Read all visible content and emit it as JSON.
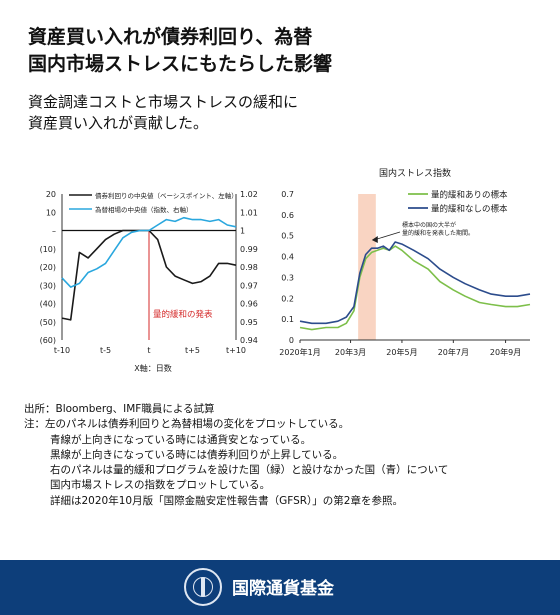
{
  "header": {
    "title_line1": "資産買い入れが債券利回り、為替",
    "title_line2": "国内市場ストレスにもたらした影響",
    "subtitle_line1": "資金調達コストと市場ストレスの緩和に",
    "subtitle_line2": "資産買い入れが貢献した。"
  },
  "colors": {
    "black_series": "#1a1a1a",
    "cyan_series": "#2aa7de",
    "green_series": "#7dbf4a",
    "blue_series": "#2c4c8c",
    "event_line": "#d42a2a",
    "shade": "#f7c9b3",
    "footer_bg": "#0d3e7a"
  },
  "chart_data": [
    {
      "type": "line",
      "x": [
        "t-10",
        "t-9",
        "t-8",
        "t-7",
        "t-6",
        "t-5",
        "t-4",
        "t-3",
        "t-2",
        "t-1",
        "t",
        "t+1",
        "t+2",
        "t+3",
        "t+4",
        "t+5",
        "t+6",
        "t+7",
        "t+8",
        "t+9",
        "t+10"
      ],
      "xticks": [
        "t-10",
        "t-5",
        "t",
        "t+5",
        "t+10"
      ],
      "xlabel": "X軸：日数",
      "left_axis": {
        "ylim": [
          -60,
          20
        ],
        "ticks": [
          "20",
          "10",
          "–",
          "(10)",
          "(20)",
          "(30)",
          "(40)",
          "(50)",
          "(60)"
        ]
      },
      "right_axis": {
        "ylim": [
          0.94,
          1.02
        ],
        "ticks": [
          "1.02",
          "1.01",
          "1",
          "0.99",
          "0.98",
          "0.97",
          "0.96",
          "0.95",
          "0.94"
        ]
      },
      "series": [
        {
          "name": "債券利回りの中央値（ベーシスポイント、左軸）",
          "axis": "left",
          "values": [
            -48,
            -49,
            -12,
            -15,
            -10,
            -5,
            -2,
            0,
            0,
            0,
            0,
            -5,
            -20,
            -25,
            -27,
            -29,
            -28,
            -25,
            -18,
            -18,
            -19
          ]
        },
        {
          "name": "為替相場の中央値（指数、右軸）",
          "axis": "right",
          "values": [
            0.974,
            0.969,
            0.971,
            0.977,
            0.979,
            0.982,
            0.989,
            0.996,
            0.999,
            1.0,
            1.0,
            1.003,
            1.006,
            1.005,
            1.007,
            1.006,
            1.006,
            1.005,
            1.006,
            1.003,
            1.002
          ]
        }
      ],
      "event": {
        "x": "t",
        "label": "量的緩和の発表"
      }
    },
    {
      "type": "line",
      "title": "国内ストレス指数",
      "x_range": [
        "2020-01-01",
        "2020-09-30"
      ],
      "xticks": [
        {
          "x": "2020-01-01",
          "label": "2020年1月"
        },
        {
          "x": "2020-03-01",
          "label": "20年3月"
        },
        {
          "x": "2020-05-01",
          "label": "20年5月"
        },
        {
          "x": "2020-07-01",
          "label": "20年7月"
        },
        {
          "x": "2020-09-01",
          "label": "20年9月"
        }
      ],
      "ylim": [
        0,
        0.7
      ],
      "yticks": [
        "0.7",
        "0.6",
        "0.5",
        "0.4",
        "0.3",
        "0.2",
        "0.1",
        "0"
      ],
      "shaded_range": [
        "2020-03-10",
        "2020-03-31"
      ],
      "annotation": {
        "x": "2020-03-25",
        "text_line1": "標本中の国の大半が",
        "text_line2": "量的緩和を発表した期間。"
      },
      "series": [
        {
          "name": "量的緩和ありの標本",
          "x": [
            "2020-01-01",
            "2020-01-15",
            "2020-02-01",
            "2020-02-15",
            "2020-02-25",
            "2020-03-05",
            "2020-03-12",
            "2020-03-19",
            "2020-03-26",
            "2020-04-02",
            "2020-04-09",
            "2020-04-16",
            "2020-04-23",
            "2020-05-01",
            "2020-05-15",
            "2020-06-01",
            "2020-06-15",
            "2020-07-01",
            "2020-07-15",
            "2020-08-01",
            "2020-08-15",
            "2020-09-01",
            "2020-09-15",
            "2020-09-30"
          ],
          "values": [
            0.06,
            0.05,
            0.06,
            0.06,
            0.08,
            0.14,
            0.3,
            0.39,
            0.42,
            0.43,
            0.44,
            0.43,
            0.45,
            0.43,
            0.38,
            0.34,
            0.28,
            0.24,
            0.21,
            0.18,
            0.17,
            0.16,
            0.16,
            0.17
          ]
        },
        {
          "name": "量的緩和なしの標本",
          "x": [
            "2020-01-01",
            "2020-01-15",
            "2020-02-01",
            "2020-02-15",
            "2020-02-25",
            "2020-03-05",
            "2020-03-12",
            "2020-03-19",
            "2020-03-26",
            "2020-04-02",
            "2020-04-09",
            "2020-04-16",
            "2020-04-23",
            "2020-05-01",
            "2020-05-15",
            "2020-06-01",
            "2020-06-15",
            "2020-07-01",
            "2020-07-15",
            "2020-08-01",
            "2020-08-15",
            "2020-09-01",
            "2020-09-15",
            "2020-09-30"
          ],
          "values": [
            0.09,
            0.08,
            0.08,
            0.09,
            0.11,
            0.16,
            0.32,
            0.41,
            0.44,
            0.44,
            0.45,
            0.43,
            0.47,
            0.46,
            0.43,
            0.39,
            0.34,
            0.3,
            0.27,
            0.24,
            0.22,
            0.21,
            0.21,
            0.22
          ]
        }
      ]
    }
  ],
  "notes": {
    "source": "出所：Bloomberg、IMF職員による試算",
    "note_line1": "注：左のパネルは債券利回りと為替相場の変化をプロットしている。",
    "note_line2": "青線が上向きになっている時には通貨安となっている。",
    "note_line3": "黒線が上向きになっている時には債券利回りが上昇している。",
    "note_line4": "右のパネルは量的緩和プログラムを設けた国（緑）と設けなかった国（青）について",
    "note_line5": "国内市場ストレスの指数をプロットしている。",
    "note_line6": "詳細は2020年10月版「国際金融安定性報告書（GFSR）」の第2章を参照。"
  },
  "footer": {
    "org_name": "国際通貨基金"
  }
}
